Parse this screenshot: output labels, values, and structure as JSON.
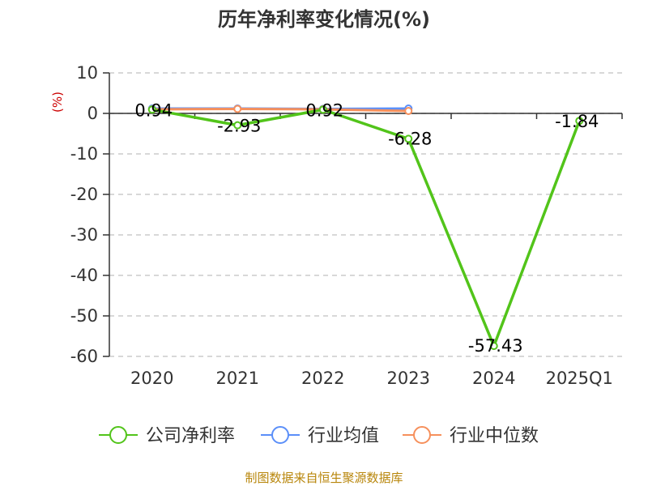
{
  "chart_data": {
    "type": "line",
    "title": "历年净利率变化情况(%)",
    "ylabel": "(%)",
    "ylim": [
      -60,
      10
    ],
    "yticks": [
      "10",
      "0",
      "-10",
      "-20",
      "-30",
      "-40",
      "-50",
      "-60"
    ],
    "categories": [
      "2020",
      "2021",
      "2022",
      "2023",
      "2024",
      "2025Q1"
    ],
    "grid": true,
    "legend_position": "bottom",
    "series": [
      {
        "name": "公司净利率",
        "color": "#52c41a",
        "values": [
          0.94,
          -2.93,
          0.92,
          -6.28,
          -57.43,
          -1.84
        ],
        "labels": [
          "0.94",
          "-2.93",
          "0.92",
          "-6.28",
          "-57.43",
          "-1.84"
        ]
      },
      {
        "name": "行业均值",
        "color": "#5b8ff9",
        "values": [
          1.2,
          1.2,
          1.1,
          1.2,
          null,
          null
        ]
      },
      {
        "name": "行业中位数",
        "color": "#f6905c",
        "values": [
          1.0,
          1.1,
          1.0,
          0.6,
          null,
          null
        ]
      }
    ]
  },
  "footer": {
    "source": "制图数据来自恒生聚源数据库"
  }
}
